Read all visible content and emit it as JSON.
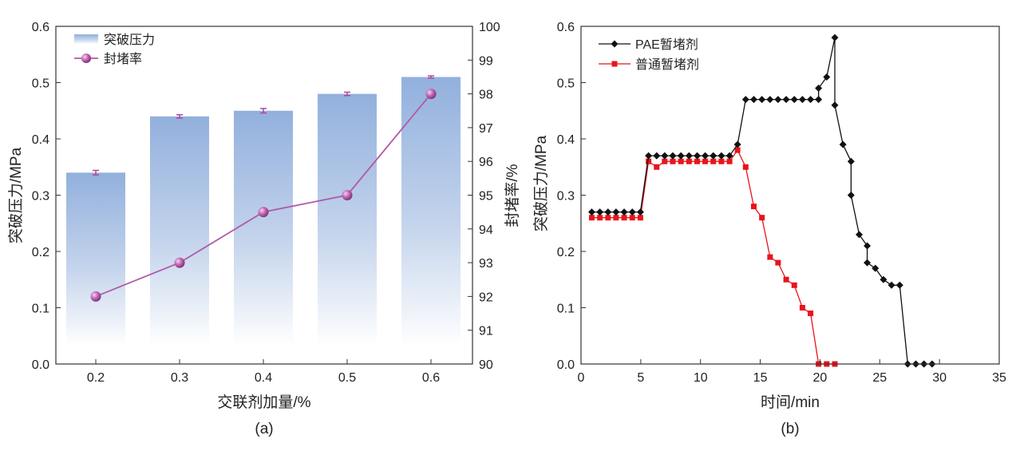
{
  "colors": {
    "bar_top": "#92b0dd",
    "bar_bottom": "#ffffff",
    "rate_line": "#b05aa8",
    "err": "#b0489a",
    "pae": "#111111",
    "normal": "#e8141c"
  },
  "chart_data": [
    {
      "type": "bar",
      "panel_label": "(a)",
      "xlabel": "交联剂加量/%",
      "ylabel": "突破压力/MPa",
      "ylabel_right": "封堵率/%",
      "categories": [
        "0.2",
        "0.3",
        "0.4",
        "0.5",
        "0.6"
      ],
      "ylim": [
        0,
        0.6
      ],
      "yticks": [
        "0.0",
        "0.1",
        "0.2",
        "0.3",
        "0.4",
        "0.5",
        "0.6"
      ],
      "ylim_right": [
        90,
        100
      ],
      "yticks_right": [
        "90",
        "91",
        "92",
        "93",
        "94",
        "95",
        "96",
        "97",
        "98",
        "99",
        "100"
      ],
      "legend_position": "top-left",
      "series": [
        {
          "name": "突破压力",
          "type": "bar",
          "axis": "left",
          "values": [
            0.34,
            0.44,
            0.45,
            0.48,
            0.51
          ],
          "error": [
            0.004,
            0.003,
            0.004,
            0.003,
            0.002
          ]
        },
        {
          "name": "封堵率",
          "type": "line",
          "axis": "right",
          "values": [
            92,
            93,
            94.5,
            95,
            98
          ]
        }
      ]
    },
    {
      "type": "line",
      "panel_label": "(b)",
      "xlabel": "时间/min",
      "ylabel": "突破压力/MPa",
      "xlim": [
        0,
        35
      ],
      "xticks": [
        "0",
        "5",
        "10",
        "15",
        "20",
        "25",
        "30",
        "35"
      ],
      "ylim": [
        0,
        0.6
      ],
      "yticks": [
        "0.0",
        "0.1",
        "0.2",
        "0.3",
        "0.4",
        "0.5",
        "0.6"
      ],
      "legend_position": "top-left",
      "series": [
        {
          "name": "PAE暂堵剂",
          "marker": "diamond",
          "x": [
            0.9,
            1.58,
            2.26,
            2.93,
            3.61,
            4.29,
            4.97,
            5.65,
            6.33,
            7.0,
            7.68,
            8.36,
            9.04,
            9.72,
            10.39,
            11.07,
            11.75,
            12.43,
            13.1,
            13.78,
            14.46,
            15.14,
            15.82,
            16.49,
            17.17,
            17.85,
            18.53,
            19.21,
            19.88,
            19.88,
            20.56,
            21.24,
            21.24,
            21.92,
            22.6,
            22.6,
            23.28,
            23.95,
            23.95,
            24.63,
            25.31,
            25.99,
            26.67,
            27.34,
            28.02,
            28.7,
            29.38
          ],
          "y": [
            0.27,
            0.27,
            0.27,
            0.27,
            0.27,
            0.27,
            0.27,
            0.37,
            0.37,
            0.37,
            0.37,
            0.37,
            0.37,
            0.37,
            0.37,
            0.37,
            0.37,
            0.37,
            0.39,
            0.47,
            0.47,
            0.47,
            0.47,
            0.47,
            0.47,
            0.47,
            0.47,
            0.47,
            0.47,
            0.49,
            0.51,
            0.58,
            0.46,
            0.39,
            0.36,
            0.3,
            0.23,
            0.21,
            0.18,
            0.17,
            0.15,
            0.14,
            0.14,
            0,
            0,
            0,
            0
          ]
        },
        {
          "name": "普通暂堵剂",
          "marker": "square",
          "x": [
            0.9,
            1.58,
            2.26,
            2.93,
            3.61,
            4.29,
            4.97,
            5.65,
            6.33,
            7.0,
            7.68,
            8.36,
            9.04,
            9.72,
            10.39,
            11.07,
            11.75,
            12.43,
            13.1,
            13.78,
            14.46,
            15.14,
            15.82,
            16.49,
            17.17,
            17.85,
            18.53,
            19.21,
            19.88,
            20.56,
            21.24
          ],
          "y": [
            0.26,
            0.26,
            0.26,
            0.26,
            0.26,
            0.26,
            0.26,
            0.36,
            0.35,
            0.36,
            0.36,
            0.36,
            0.36,
            0.36,
            0.36,
            0.36,
            0.36,
            0.36,
            0.38,
            0.35,
            0.28,
            0.26,
            0.19,
            0.18,
            0.15,
            0.14,
            0.1,
            0.09,
            0,
            0,
            0
          ]
        }
      ]
    }
  ]
}
